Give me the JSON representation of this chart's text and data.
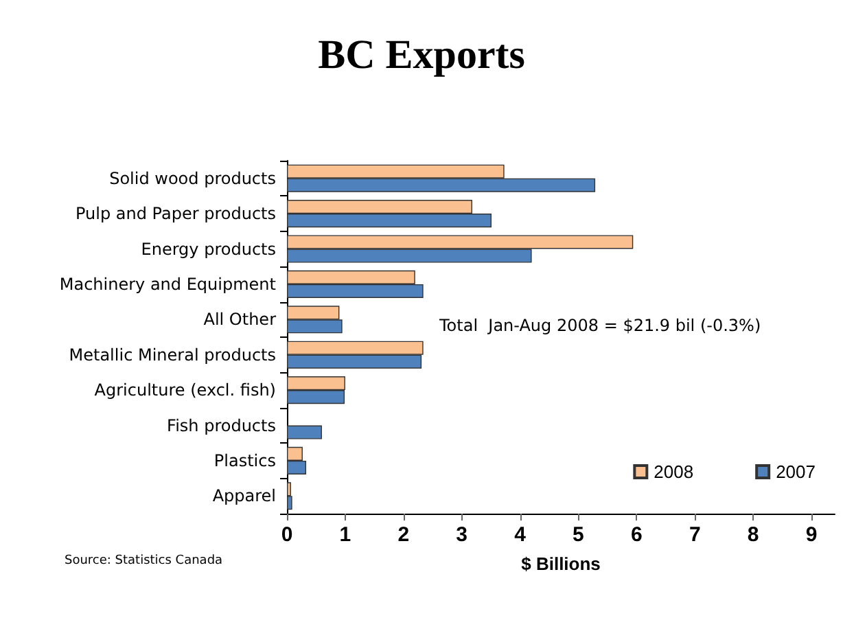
{
  "chart_data": {
    "type": "bar",
    "orientation": "horizontal",
    "title": "BC Exports",
    "xlabel": "$ Billions",
    "categories": [
      "Solid wood products",
      "Pulp and Paper products",
      "Energy products",
      "Machinery and Equipment",
      "All Other",
      "Metallic Mineral products",
      "Agriculture (excl. fish)",
      "Fish products",
      "Plastics",
      "Apparel"
    ],
    "series": [
      {
        "name": "2008",
        "color": "#fac090",
        "values": [
          3.73,
          3.18,
          5.94,
          2.2,
          0.9,
          2.34,
          1.0,
          null,
          0.27,
          0.07
        ]
      },
      {
        "name": "2007",
        "color": "#4f81bd",
        "values": [
          5.29,
          3.51,
          4.2,
          2.34,
          0.95,
          2.31,
          0.99,
          0.6,
          0.33,
          0.09
        ]
      }
    ],
    "xlim": [
      0,
      9.4
    ],
    "xticks": [
      0,
      1,
      2,
      3,
      4,
      5,
      6,
      7,
      8,
      9
    ],
    "grid": false,
    "legend": "bottom right",
    "annotations": [
      "Total  Jan-Aug 2008 = $21.9 bil (-0.3%)",
      "Source: Statistics Canada"
    ]
  }
}
